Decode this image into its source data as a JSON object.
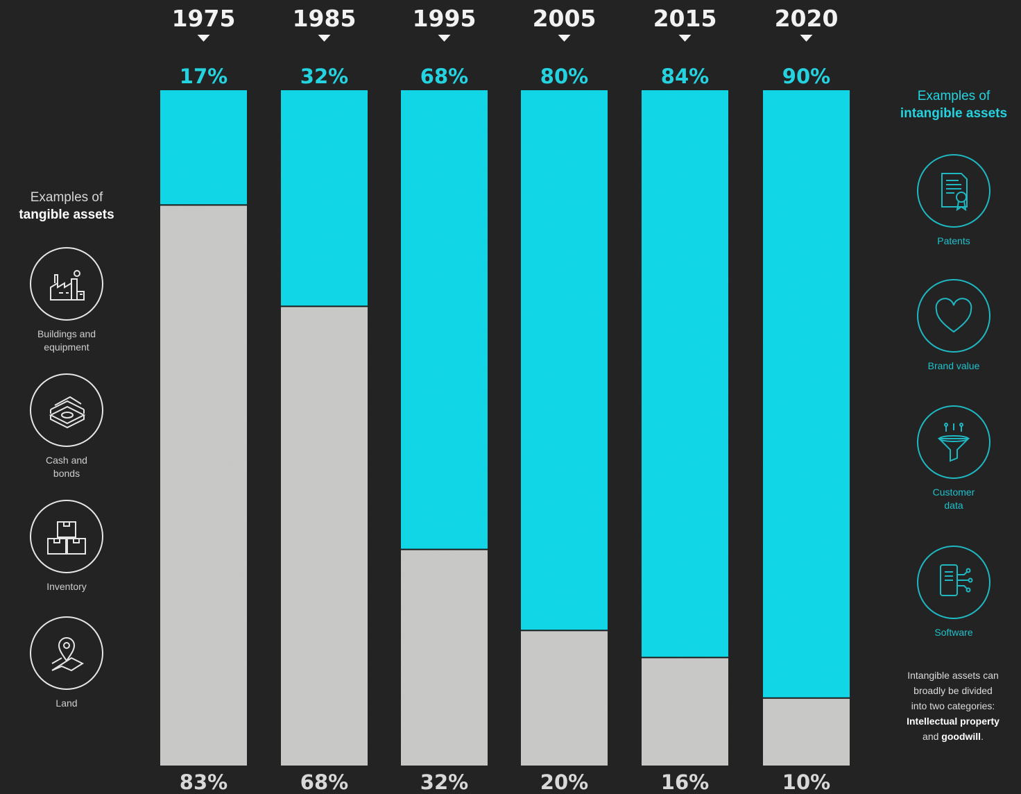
{
  "chart_data": {
    "type": "bar",
    "stacked": true,
    "normalized": true,
    "categories": [
      "1975",
      "1985",
      "1995",
      "2005",
      "2015",
      "2020"
    ],
    "series": [
      {
        "name": "",
        "values": [
          17,
          32,
          68,
          80,
          84,
          90
        ],
        "labels": [
          "17%",
          "32%",
          "68%",
          "80%",
          "84%",
          "90%"
        ],
        "color": "#0fd6e6"
      },
      {
        "name": "",
        "values": [
          83,
          68,
          32,
          20,
          16,
          10
        ],
        "labels": [
          "83%",
          "68%",
          "32%",
          "20%",
          "16%",
          "10%"
        ],
        "color": "#c8c8c6"
      }
    ],
    "ylim": [
      0,
      100
    ],
    "grid": false,
    "legend": "none"
  },
  "colors": {
    "background": "#232323",
    "intangible": "#0fd6e6",
    "tangible": "#c8c8c6",
    "accent_text": "#25d3e0",
    "year_text": "#f2f2f2"
  },
  "left_panel": {
    "title_line1": "Examples of",
    "title_line2": "tangible assets",
    "items": [
      {
        "label": "Buildings and\nequipment",
        "icon": "factory-icon"
      },
      {
        "label": "Cash and\nbonds",
        "icon": "money-stack-icon"
      },
      {
        "label": "Inventory",
        "icon": "boxes-icon"
      },
      {
        "label": "Land",
        "icon": "map-pin-icon"
      }
    ]
  },
  "right_panel": {
    "title_line1": "Examples of",
    "title_line2": "intangible assets",
    "items": [
      {
        "label": "Patents",
        "icon": "certificate-icon"
      },
      {
        "label": "Brand value",
        "icon": "heart-icon"
      },
      {
        "label": "Customer\ndata",
        "icon": "funnel-icon"
      },
      {
        "label": "Software",
        "icon": "phone-circuit-icon"
      }
    ]
  },
  "footnote": {
    "line1": "Intangible assets can",
    "line2": "broadly be divided",
    "line3": "into two categories:",
    "bold1": "Intellectual property",
    "connector": "and",
    "bold2": "goodwill",
    "end": "."
  }
}
